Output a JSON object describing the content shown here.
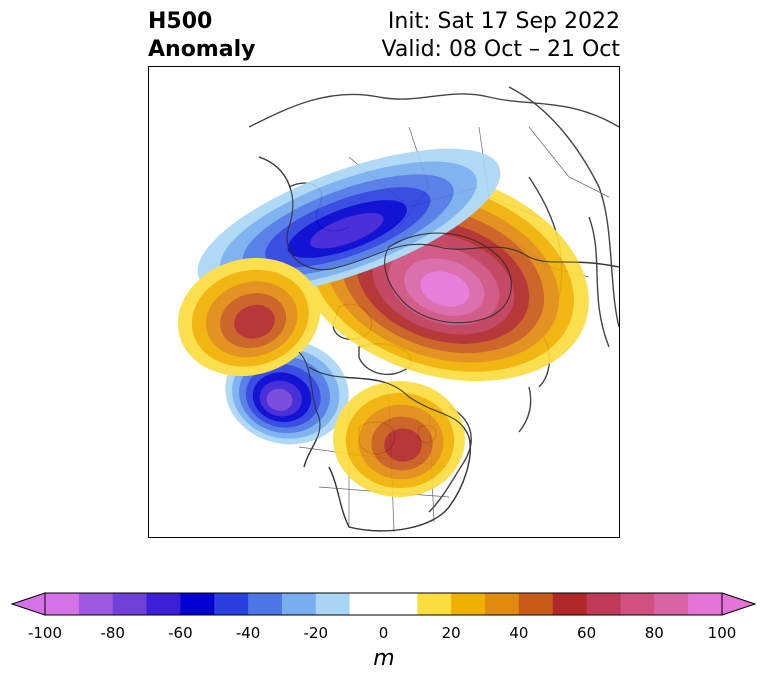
{
  "header": {
    "field": "H500",
    "type": "Anomaly",
    "init": "Init: Sat 17 Sep 2022",
    "valid": "Valid: 08 Oct – 21 Oct"
  },
  "colorbar": {
    "unit": "m",
    "range": [
      -100,
      100
    ],
    "extend": "both",
    "ticks": [
      "-100",
      "-80",
      "-60",
      "-40",
      "-20",
      "0",
      "20",
      "40",
      "60",
      "80",
      "100"
    ],
    "colors": [
      "#d672e8",
      "#9e58e0",
      "#7040d8",
      "#3c1ed6",
      "#0000d0",
      "#2a3fe0",
      "#4d77e6",
      "#78adf0",
      "#aad6f6",
      "#ffffff",
      "#ffffff",
      "#fbdd40",
      "#f0b000",
      "#e08a10",
      "#c85a18",
      "#b02828",
      "#c03a58",
      "#d05080",
      "#d864a8",
      "#e574d8"
    ],
    "over_color": "#e574d8",
    "under_color": "#d672e8"
  },
  "map": {
    "projection": "north-polar-stereographic",
    "features": [
      {
        "name": "anomaly-ridge-north-atlantic-greenland",
        "peak_m": 90
      },
      {
        "name": "anomaly-trough-siberia",
        "peak_m": -60
      },
      {
        "name": "anomaly-trough-gulf-of-alaska",
        "peak_m": -70
      },
      {
        "name": "anomaly-ridge-bering",
        "peak_m": 50
      },
      {
        "name": "anomaly-ridge-eastern-north-america",
        "peak_m": 50
      }
    ]
  }
}
